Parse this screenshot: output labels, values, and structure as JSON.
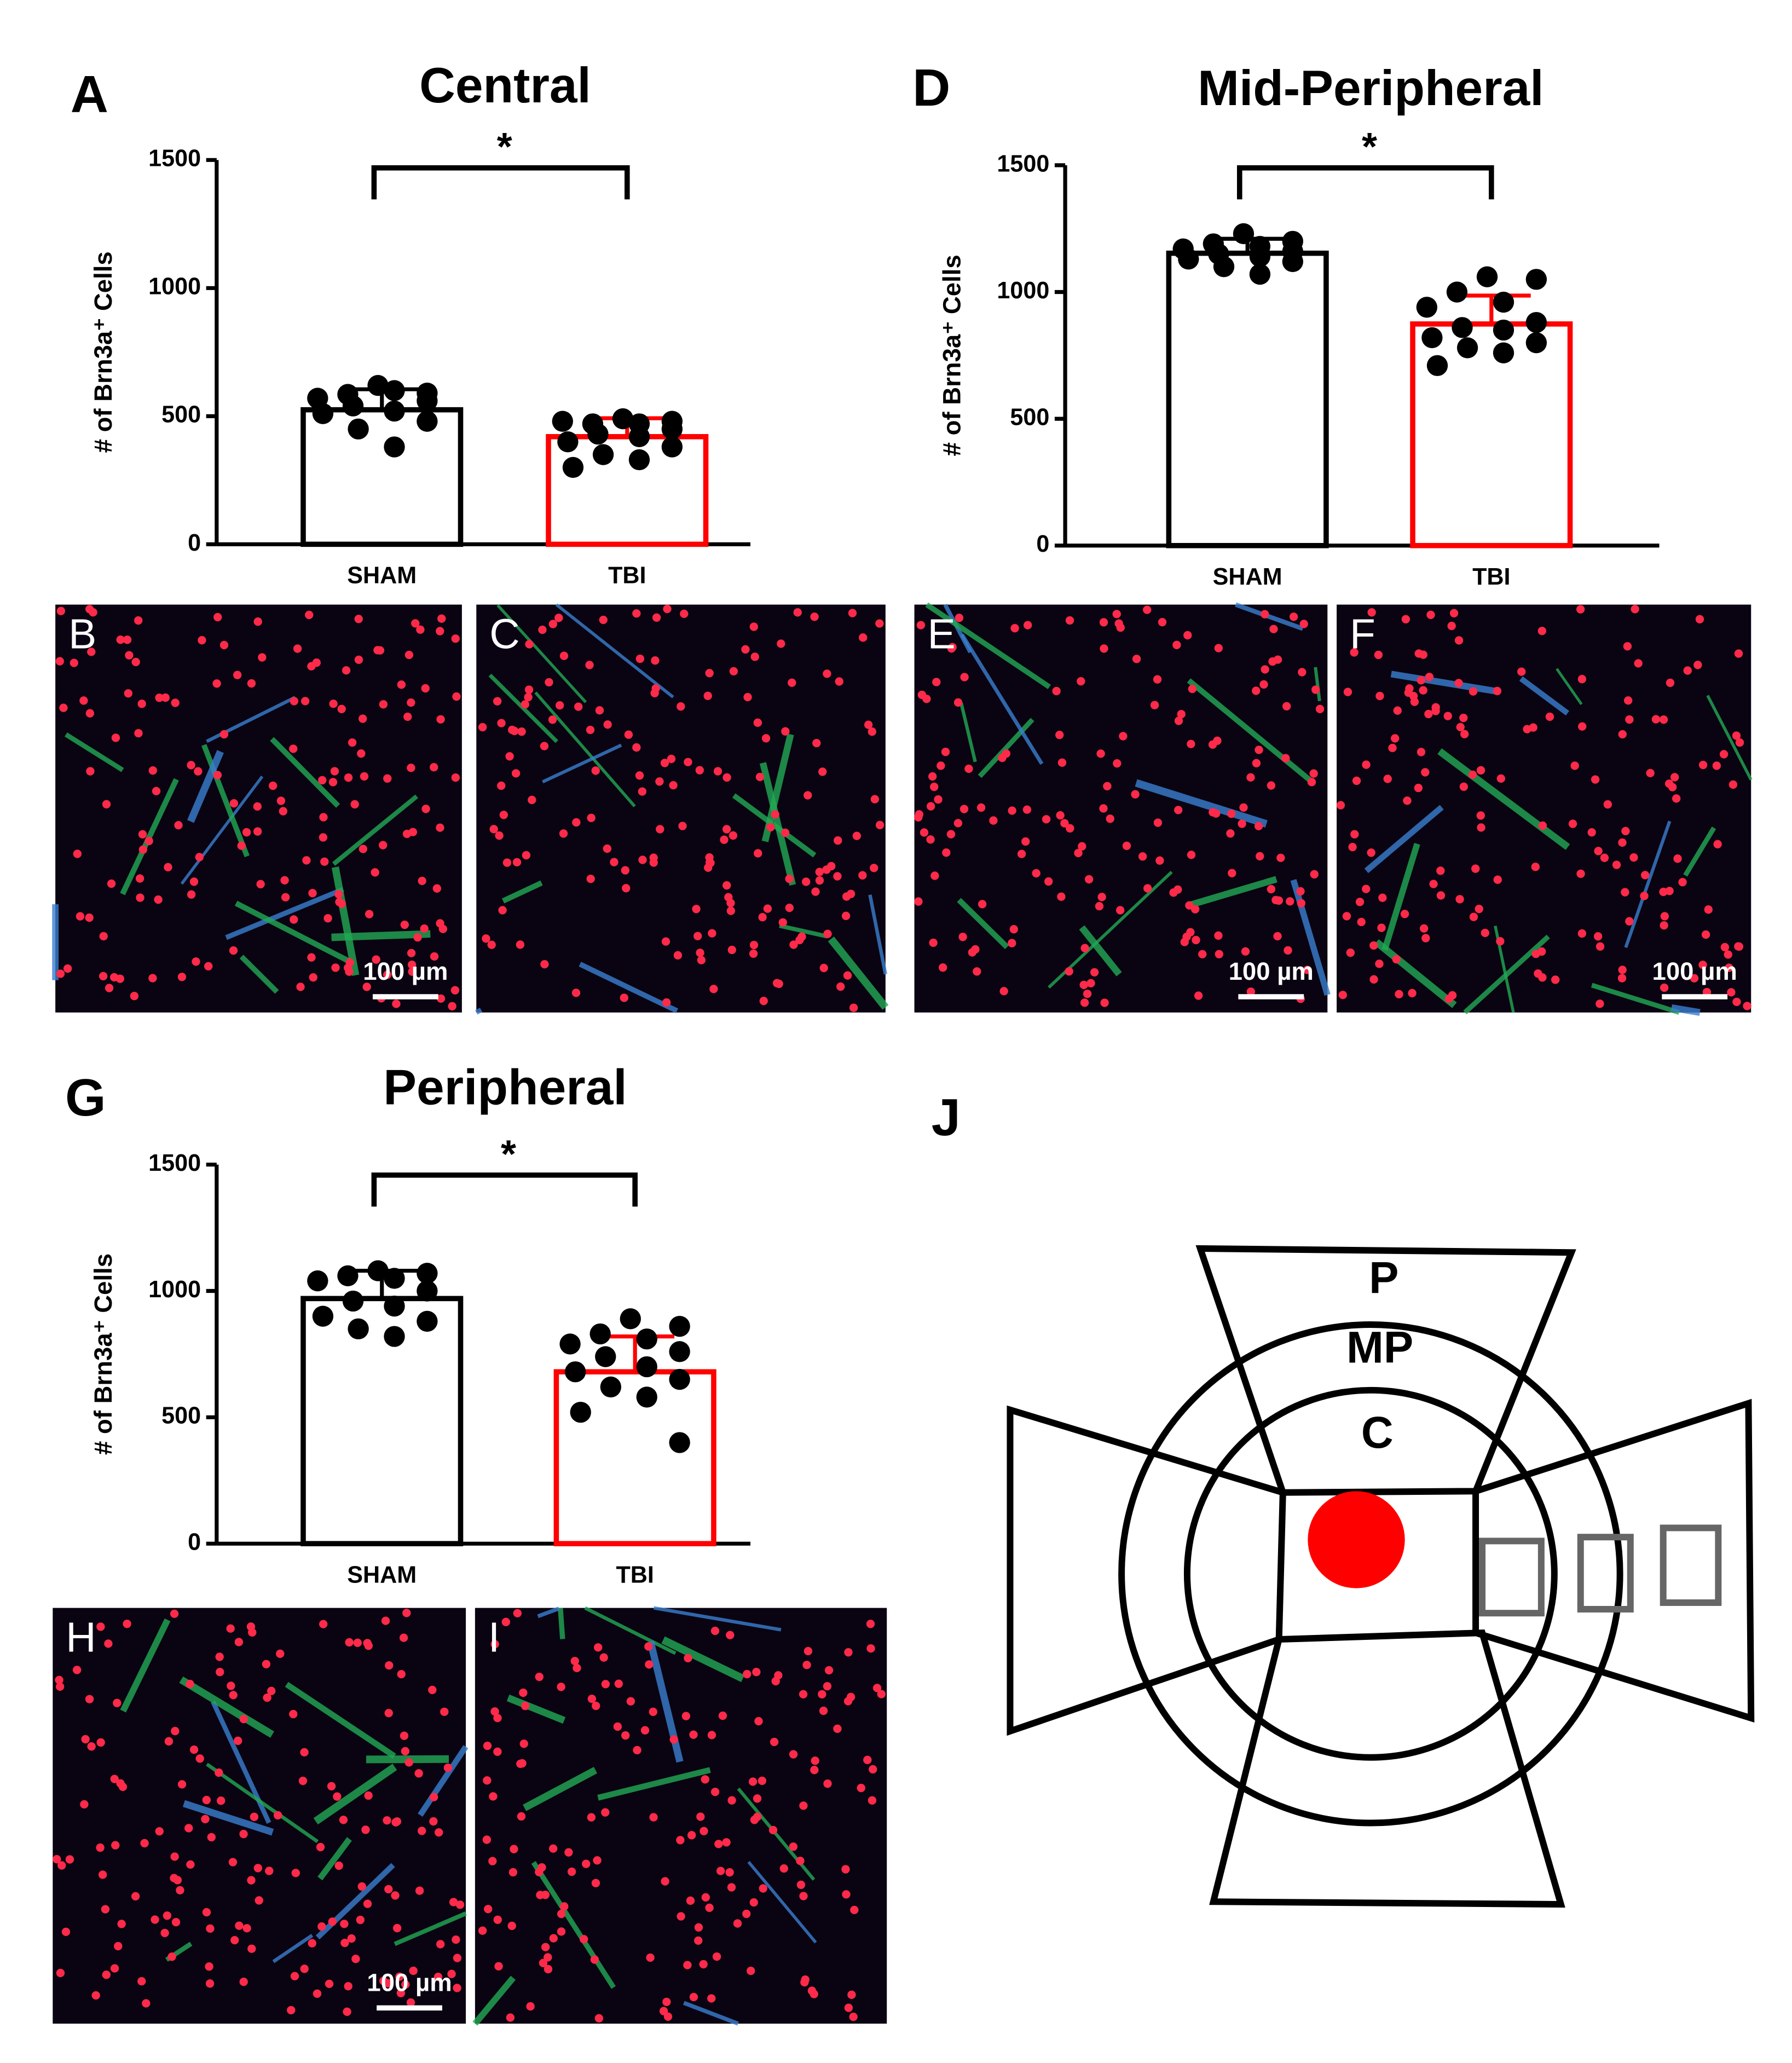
{
  "chart_data": [
    {
      "panel": "A",
      "type": "bar",
      "title": "Central",
      "y_label": "# of Brn3a⁺ Cells",
      "categories": [
        "SHAM",
        "TBI"
      ],
      "colors": [
        "#000000",
        "#ff0000"
      ],
      "values": [
        525,
        420
      ],
      "errors": [
        80,
        72
      ],
      "points": [
        [
          620,
          590,
          585,
          600,
          570,
          560,
          540,
          520,
          510,
          480,
          450,
          380
        ],
        [
          490,
          480,
          470,
          470,
          480,
          450,
          430,
          420,
          400,
          380,
          350,
          330,
          300
        ]
      ],
      "ylim": [
        0,
        1500
      ],
      "yticks": [
        0,
        500,
        1000,
        1500
      ],
      "significance": "*"
    },
    {
      "panel": "D",
      "type": "bar",
      "title": "Mid-Peripheral",
      "y_label": "# of Brn3a⁺ Cells",
      "categories": [
        "SHAM",
        "TBI"
      ],
      "colors": [
        "#000000",
        "#ff0000"
      ],
      "values": [
        1153,
        874
      ],
      "errors": [
        57,
        112
      ],
      "points": [
        [
          1230,
          1200,
          1190,
          1180,
          1170,
          1160,
          1150,
          1140,
          1130,
          1120,
          1100,
          1070
        ],
        [
          1060,
          1050,
          1000,
          960,
          940,
          880,
          860,
          850,
          820,
          800,
          780,
          760,
          710
        ]
      ],
      "ylim": [
        0,
        1500
      ],
      "yticks": [
        0,
        500,
        1000,
        1500
      ],
      "significance": "*"
    },
    {
      "panel": "G",
      "type": "bar",
      "title": "Peripheral",
      "y_label": "# of Brn3a⁺ Cells",
      "categories": [
        "SHAM",
        "TBI"
      ],
      "colors": [
        "#000000",
        "#ff0000"
      ],
      "values": [
        970,
        680
      ],
      "errors": [
        110,
        140
      ],
      "points": [
        [
          1080,
          1070,
          1060,
          1050,
          1040,
          1000,
          960,
          940,
          900,
          880,
          850,
          820
        ],
        [
          890,
          860,
          830,
          810,
          790,
          760,
          740,
          700,
          680,
          650,
          620,
          580,
          520,
          400
        ]
      ],
      "ylim": [
        0,
        1500
      ],
      "yticks": [
        0,
        500,
        1000,
        1500
      ],
      "significance": "*"
    }
  ],
  "images": [
    {
      "label": "B",
      "scale_bar": "100 µm"
    },
    {
      "label": "C"
    },
    {
      "label": "E",
      "scale_bar": "100 µm"
    },
    {
      "label": "F",
      "scale_bar": "100 µm"
    },
    {
      "label": "H",
      "scale_bar": "100 µm"
    },
    {
      "label": "I"
    }
  ],
  "diagram": {
    "label": "J",
    "regions": [
      "P",
      "MP",
      "C"
    ]
  }
}
